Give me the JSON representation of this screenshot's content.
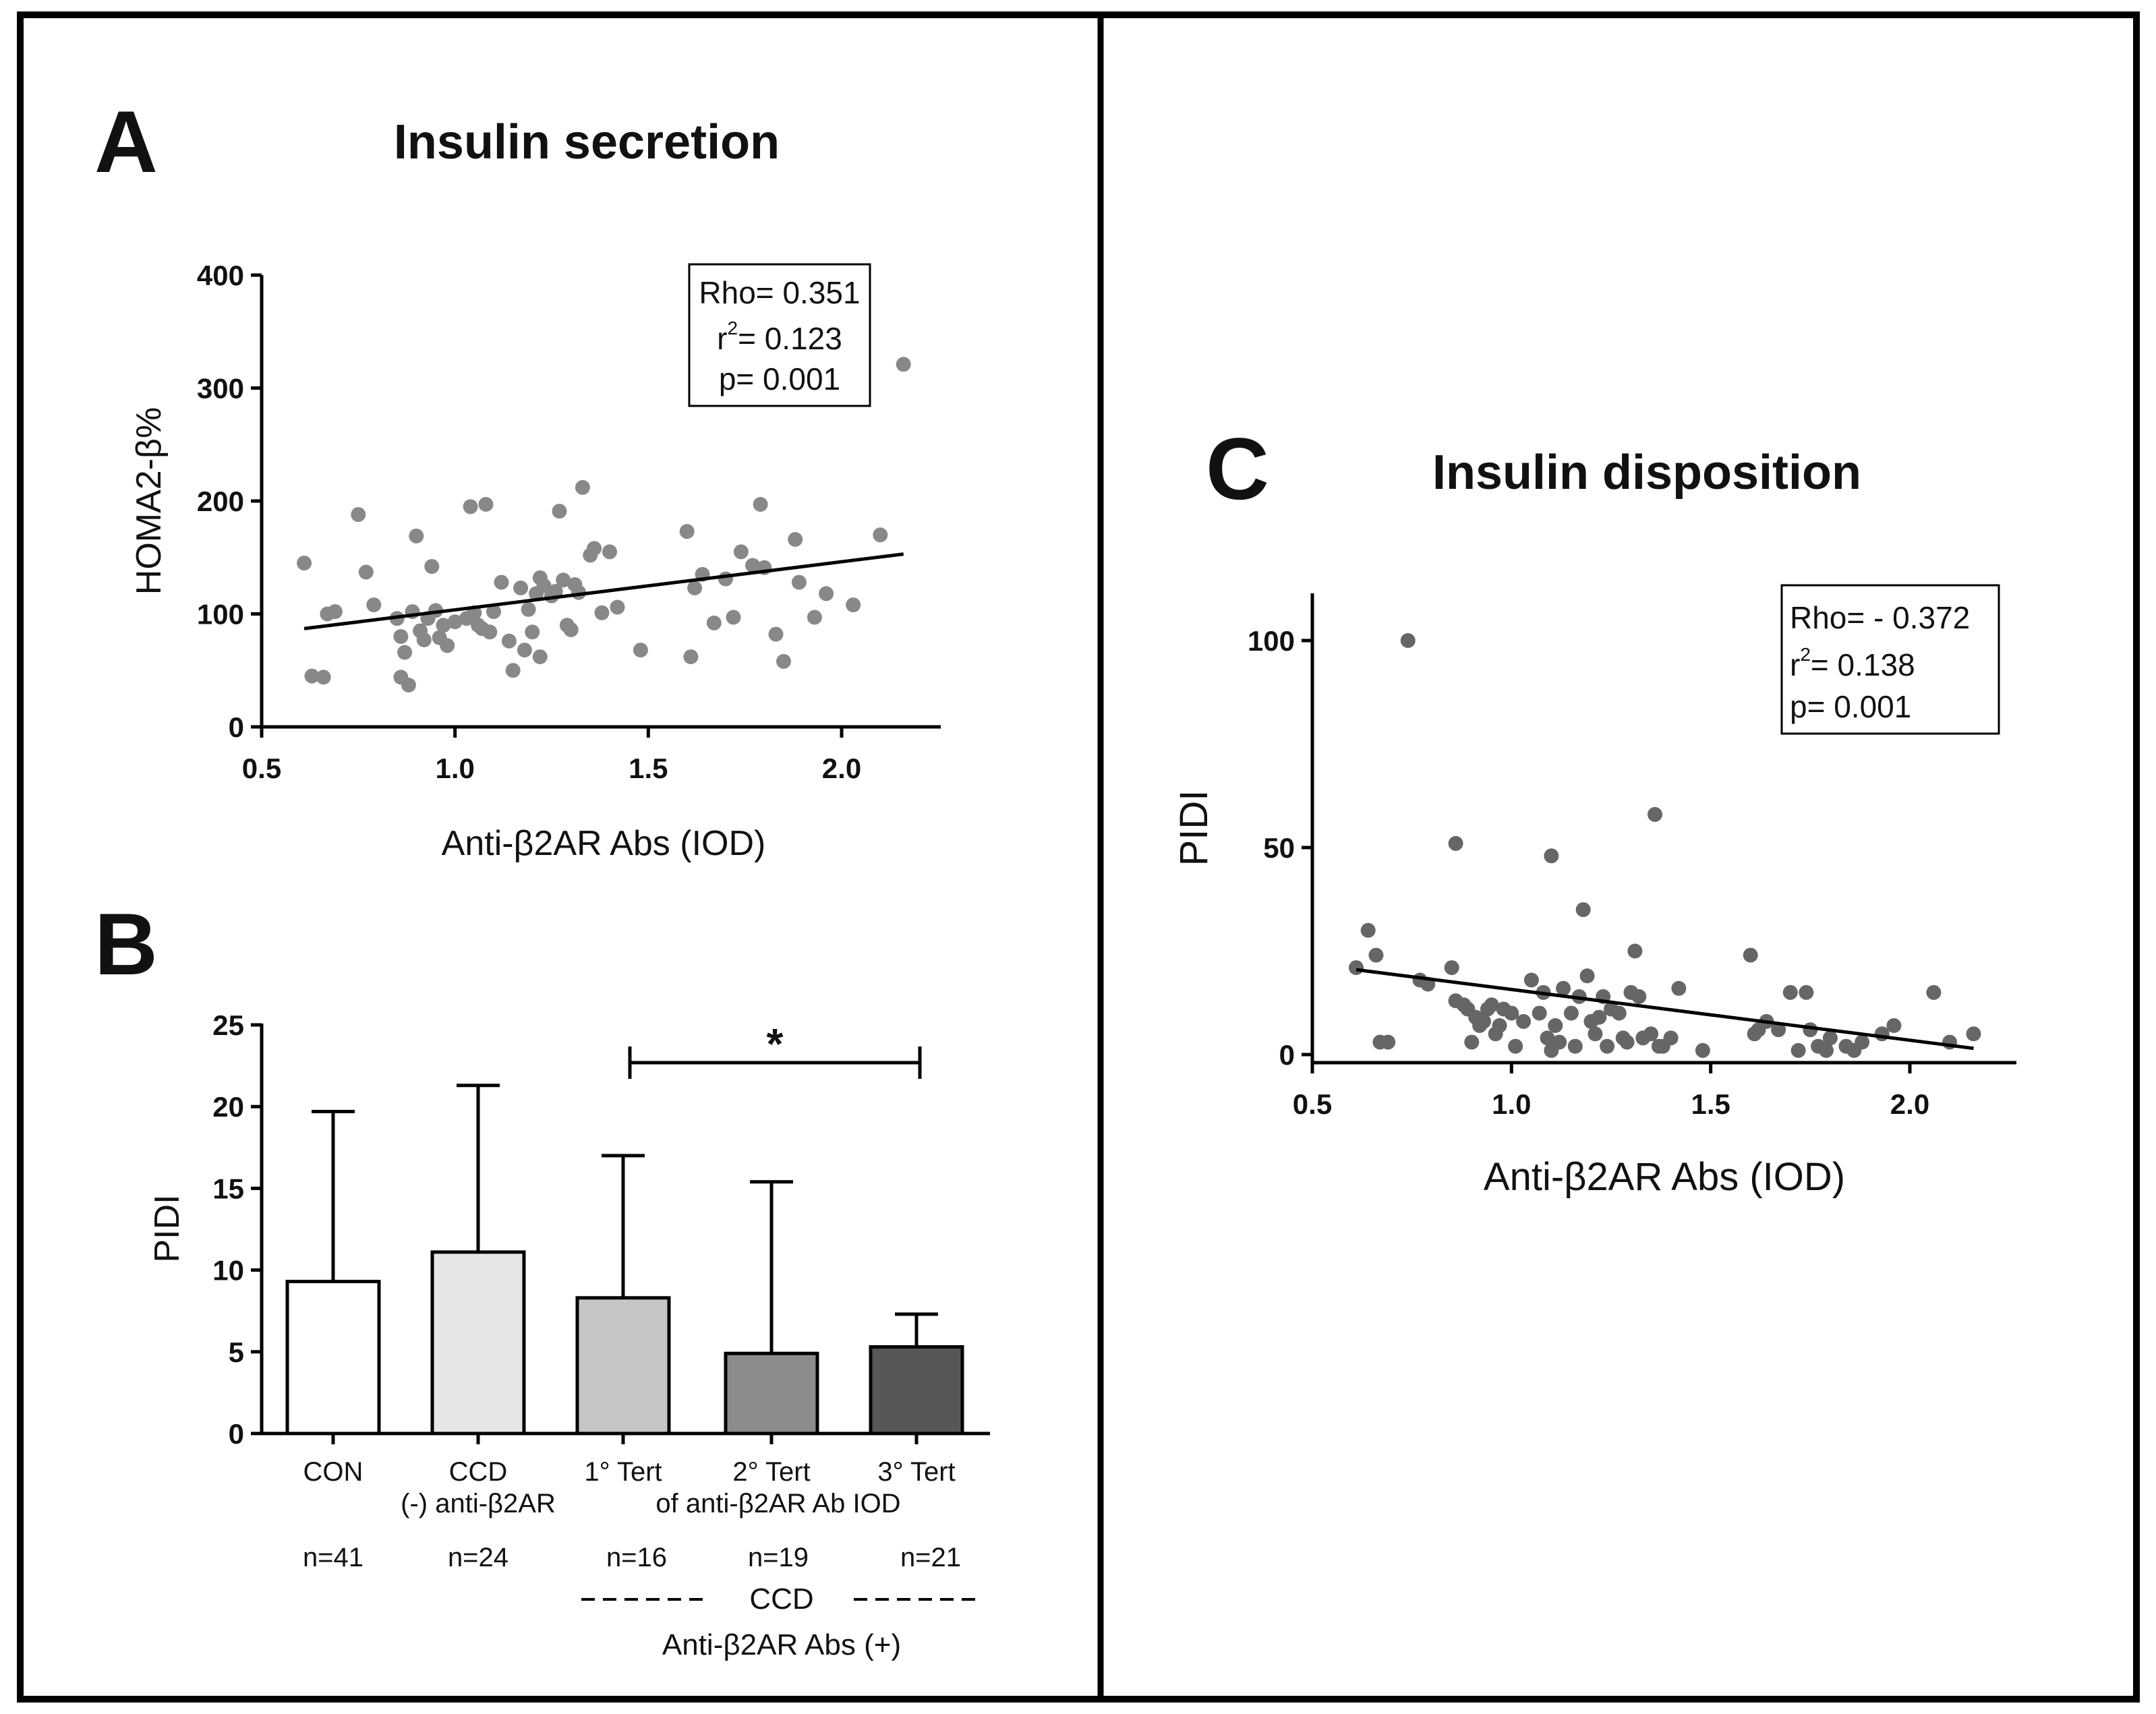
{
  "panels": {
    "A": {
      "letter": "A",
      "title": "Insulin secretion"
    },
    "B": {
      "letter": "B"
    },
    "C": {
      "letter": "C",
      "title": "Insulin disposition"
    }
  },
  "chart_data": [
    {
      "id": "A",
      "type": "scatter",
      "title": "Insulin secretion",
      "xlabel": "Anti-β2AR Abs (IOD)",
      "ylabel": "HOMA2-β%",
      "xlim": [
        0.5,
        2.25
      ],
      "ylim": [
        0,
        400
      ],
      "xticks": [
        "0.5",
        "1.0",
        "1.5",
        "2.0"
      ],
      "yticks": [
        "0",
        "100",
        "200",
        "300",
        "400"
      ],
      "point_color": "#888888",
      "stats": {
        "rho": "Rho= 0.351",
        "r2_prefix": "r",
        "r2_sup": "2",
        "r2_value": "= 0.123",
        "p": "p= 0.001"
      },
      "regression": {
        "x": [
          0.61,
          2.16
        ],
        "y": [
          87,
          153
        ]
      },
      "points": [
        [
          0.61,
          145
        ],
        [
          0.63,
          45
        ],
        [
          0.66,
          44
        ],
        [
          0.67,
          100
        ],
        [
          0.69,
          102
        ],
        [
          0.75,
          188
        ],
        [
          0.77,
          137
        ],
        [
          0.79,
          108
        ],
        [
          0.85,
          96
        ],
        [
          0.86,
          44
        ],
        [
          0.86,
          80
        ],
        [
          0.87,
          66
        ],
        [
          0.88,
          37
        ],
        [
          0.89,
          102
        ],
        [
          0.9,
          169
        ],
        [
          0.91,
          85
        ],
        [
          0.92,
          77
        ],
        [
          0.93,
          96
        ],
        [
          0.94,
          142
        ],
        [
          0.95,
          103
        ],
        [
          0.96,
          79
        ],
        [
          0.97,
          90
        ],
        [
          0.98,
          72
        ],
        [
          1.0,
          93
        ],
        [
          1.03,
          96
        ],
        [
          1.04,
          195
        ],
        [
          1.05,
          101
        ],
        [
          1.06,
          90
        ],
        [
          1.07,
          87
        ],
        [
          1.08,
          197
        ],
        [
          1.09,
          84
        ],
        [
          1.1,
          102
        ],
        [
          1.12,
          128
        ],
        [
          1.14,
          76
        ],
        [
          1.15,
          50
        ],
        [
          1.17,
          123
        ],
        [
          1.18,
          68
        ],
        [
          1.19,
          104
        ],
        [
          1.2,
          84
        ],
        [
          1.21,
          118
        ],
        [
          1.22,
          132
        ],
        [
          1.22,
          62
        ],
        [
          1.23,
          125
        ],
        [
          1.25,
          116
        ],
        [
          1.26,
          120
        ],
        [
          1.27,
          191
        ],
        [
          1.28,
          130
        ],
        [
          1.29,
          90
        ],
        [
          1.3,
          86
        ],
        [
          1.31,
          126
        ],
        [
          1.32,
          119
        ],
        [
          1.33,
          212
        ],
        [
          1.35,
          152
        ],
        [
          1.36,
          158
        ],
        [
          1.38,
          101
        ],
        [
          1.4,
          155
        ],
        [
          1.42,
          106
        ],
        [
          1.48,
          68
        ],
        [
          1.6,
          173
        ],
        [
          1.61,
          62
        ],
        [
          1.62,
          123
        ],
        [
          1.64,
          135
        ],
        [
          1.67,
          92
        ],
        [
          1.7,
          131
        ],
        [
          1.72,
          97
        ],
        [
          1.74,
          155
        ],
        [
          1.77,
          143
        ],
        [
          1.79,
          197
        ],
        [
          1.8,
          141
        ],
        [
          1.83,
          82
        ],
        [
          1.85,
          58
        ],
        [
          1.88,
          166
        ],
        [
          1.89,
          128
        ],
        [
          1.93,
          97
        ],
        [
          1.96,
          118
        ],
        [
          2.03,
          108
        ],
        [
          2.1,
          170
        ],
        [
          2.16,
          321
        ]
      ]
    },
    {
      "id": "B",
      "type": "bar",
      "ylabel": "PIDI",
      "ylim": [
        0,
        25
      ],
      "yticks": [
        "0",
        "5",
        "10",
        "15",
        "20",
        "25"
      ],
      "categories": [
        "CON",
        "CCD",
        "1° Tert",
        "2° Tert",
        "3° Tert"
      ],
      "subline": {
        "ccd": "(-) anti-β2AR",
        "tert": "of anti-β2AR Ab IOD"
      },
      "values": [
        9.3,
        11.1,
        8.3,
        4.9,
        5.3
      ],
      "error_upper": [
        19.7,
        21.3,
        17.0,
        15.4,
        7.3
      ],
      "fills": [
        "#ffffff",
        "#e6e6e6",
        "#c6c6c6",
        "#8c8c8c",
        "#575757"
      ],
      "n_labels": [
        "n=41",
        "n=24",
        "n=16",
        "n=19",
        "n=21"
      ],
      "significance": {
        "from": 2,
        "to": 4,
        "label": "*"
      },
      "group_label": {
        "line1": "CCD",
        "line2": "Anti-β2AR  Abs (+)"
      }
    },
    {
      "id": "C",
      "type": "scatter",
      "title": "Insulin disposition",
      "xlabel": "Anti-β2AR Abs (IOD)",
      "ylabel": "PIDI",
      "xlim": [
        0.5,
        2.25
      ],
      "ylim": [
        0,
        110
      ],
      "xticks": [
        "0.5",
        "1.0",
        "1.5",
        "2.0"
      ],
      "yticks": [
        "0",
        "50",
        "100"
      ],
      "point_color": "#666666",
      "stats": {
        "rho": "Rho= - 0.372",
        "r2_prefix": "r",
        "r2_sup": "2",
        "r2_value": "= 0.138",
        "p": "p= 0.001"
      },
      "regression": {
        "x": [
          0.61,
          2.16
        ],
        "y": [
          20.5,
          1.5
        ]
      },
      "points": [
        [
          0.61,
          21
        ],
        [
          0.64,
          30
        ],
        [
          0.66,
          24
        ],
        [
          0.67,
          3
        ],
        [
          0.69,
          3
        ],
        [
          0.74,
          100
        ],
        [
          0.77,
          18
        ],
        [
          0.79,
          17
        ],
        [
          0.85,
          21
        ],
        [
          0.86,
          13
        ],
        [
          0.86,
          51
        ],
        [
          0.88,
          12
        ],
        [
          0.89,
          11
        ],
        [
          0.9,
          3
        ],
        [
          0.91,
          9
        ],
        [
          0.92,
          7
        ],
        [
          0.93,
          8
        ],
        [
          0.94,
          11
        ],
        [
          0.95,
          12
        ],
        [
          0.96,
          5
        ],
        [
          0.97,
          7
        ],
        [
          0.98,
          11
        ],
        [
          1.0,
          10
        ],
        [
          1.01,
          2
        ],
        [
          1.03,
          8
        ],
        [
          1.05,
          18
        ],
        [
          1.07,
          10
        ],
        [
          1.08,
          15
        ],
        [
          1.09,
          4
        ],
        [
          1.1,
          1
        ],
        [
          1.1,
          48
        ],
        [
          1.11,
          7
        ],
        [
          1.12,
          3
        ],
        [
          1.13,
          16
        ],
        [
          1.15,
          10
        ],
        [
          1.16,
          2
        ],
        [
          1.17,
          14
        ],
        [
          1.18,
          35
        ],
        [
          1.19,
          19
        ],
        [
          1.2,
          8
        ],
        [
          1.21,
          5
        ],
        [
          1.22,
          9
        ],
        [
          1.23,
          14
        ],
        [
          1.24,
          2
        ],
        [
          1.25,
          11
        ],
        [
          1.27,
          10
        ],
        [
          1.28,
          4
        ],
        [
          1.29,
          3
        ],
        [
          1.3,
          15
        ],
        [
          1.31,
          25
        ],
        [
          1.32,
          14
        ],
        [
          1.33,
          4
        ],
        [
          1.35,
          5
        ],
        [
          1.36,
          58
        ],
        [
          1.37,
          2
        ],
        [
          1.38,
          2
        ],
        [
          1.4,
          4
        ],
        [
          1.42,
          16
        ],
        [
          1.48,
          1
        ],
        [
          1.6,
          24
        ],
        [
          1.61,
          5
        ],
        [
          1.62,
          6
        ],
        [
          1.64,
          8
        ],
        [
          1.67,
          6
        ],
        [
          1.7,
          15
        ],
        [
          1.72,
          1
        ],
        [
          1.74,
          15
        ],
        [
          1.75,
          6
        ],
        [
          1.77,
          2
        ],
        [
          1.79,
          1
        ],
        [
          1.8,
          4
        ],
        [
          1.84,
          2
        ],
        [
          1.86,
          1
        ],
        [
          1.88,
          3
        ],
        [
          1.93,
          5
        ],
        [
          1.96,
          7
        ],
        [
          2.06,
          15
        ],
        [
          2.1,
          3
        ],
        [
          2.16,
          5
        ]
      ]
    }
  ]
}
